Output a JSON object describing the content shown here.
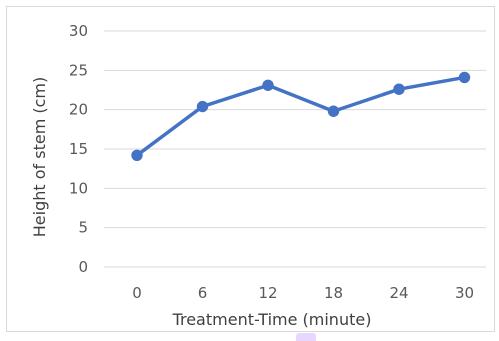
{
  "chart_data": {
    "type": "line",
    "title": "",
    "xlabel": "Treatment-Time (minute)",
    "ylabel": "Height of stem (cm)",
    "categories": [
      "0",
      "6",
      "12",
      "18",
      "24",
      "30"
    ],
    "x": [
      0,
      6,
      12,
      18,
      24,
      30
    ],
    "series": [
      {
        "values": [
          14.2,
          20.4,
          23.1,
          19.8,
          22.6,
          24.1
        ]
      }
    ],
    "ylim": [
      0,
      30
    ],
    "yticks": [
      0,
      5,
      10,
      15,
      20,
      25,
      30
    ],
    "grid": true,
    "legend": "none",
    "colors": {
      "series": "#4472c4",
      "grid": "#d9d9d9",
      "text": "#595959"
    }
  }
}
